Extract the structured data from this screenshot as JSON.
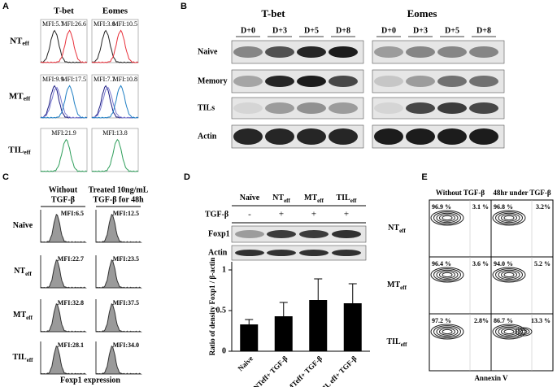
{
  "panels": {
    "a": {
      "letter": "A",
      "columns": [
        "T-bet",
        "Eomes"
      ],
      "rows": [
        {
          "text": "NT",
          "sub": "eff"
        },
        {
          "text": "MT",
          "sub": "eff"
        },
        {
          "text": "TIL",
          "sub": "eff"
        }
      ],
      "mfi": [
        [
          [
            "MFI:5.7",
            "MFI:26.6"
          ],
          [
            "MFI:3.6",
            "MFI:10.5"
          ]
        ],
        [
          [
            "MFI:9.9",
            "MFI:17.5"
          ],
          [
            "MFI:7.7",
            "MFI:10.8"
          ]
        ],
        [
          [
            "MFI:21.9"
          ],
          [
            "MFI:13.8"
          ]
        ]
      ],
      "line_colors": [
        [
          "#222222",
          "#e8303a"
        ],
        [
          "#1a1a80",
          "#1f7fc4"
        ],
        [
          "#2e9e5a"
        ]
      ]
    },
    "b": {
      "letter": "B",
      "groups": [
        "T-bet",
        "Eomes"
      ],
      "days": [
        "D+0",
        "D+3",
        "D+5",
        "D+8"
      ],
      "rows": [
        "Naive",
        "Memory",
        "TILs",
        "Actin"
      ]
    },
    "c": {
      "letter": "C",
      "columns": [
        [
          "Without",
          "TGF-β"
        ],
        [
          "Treated 10ng/mL",
          "TGF-β for 48h"
        ]
      ],
      "rows": [
        {
          "text": "Naïve"
        },
        {
          "text": "NT",
          "sub": "eff"
        },
        {
          "text": "MT",
          "sub": "eff"
        },
        {
          "text": "TIL",
          "sub": "eff"
        }
      ],
      "mfi": [
        [
          "MFI:6.5",
          "MFI:12.5"
        ],
        [
          "MFI:22.7",
          "MFI:23.5"
        ],
        [
          "MFI:32.8",
          "MFI:37.5"
        ],
        [
          "MFI:28.1",
          "MFI:34.0"
        ]
      ],
      "xlabel": "Foxp1 expression"
    },
    "d": {
      "letter": "D",
      "lanes": [
        {
          "text": "Naïve"
        },
        {
          "text": "NT",
          "sub": "eff"
        },
        {
          "text": "MT",
          "sub": "eff"
        },
        {
          "text": "TIL",
          "sub": "eff"
        }
      ],
      "treatment_label": "TGF-β",
      "treatment": [
        "-",
        "+",
        "+",
        "+"
      ],
      "blots": [
        "Foxp1",
        "Actin"
      ]
    },
    "e": {
      "letter": "E",
      "columns": [
        "Without TGF-β",
        "48hr under TGF-β"
      ],
      "rows": [
        {
          "text": "NT",
          "sub": "eff"
        },
        {
          "text": "MT",
          "sub": "eff"
        },
        {
          "text": "TIL",
          "sub": "eff"
        }
      ],
      "quadrants": [
        [
          [
            "96.9 %",
            "3.1 %"
          ],
          [
            "96.8 %",
            "3.2%"
          ]
        ],
        [
          [
            "96.4 %",
            "3.6 %"
          ],
          [
            "94.0 %",
            "5.2 %"
          ]
        ],
        [
          [
            "97.2 %",
            "2.8%"
          ],
          [
            "86.7 %",
            "13.3 %"
          ]
        ]
      ],
      "xlabel": "Annexin V"
    }
  },
  "chart_data": {
    "type": "bar",
    "ylabel": "Ratio of density Foxp1 / β-actin",
    "categories": [
      "Naive",
      "NTeff+ TGF-β",
      "MTeff+ TGF-β",
      "TIL eff+ TGF-β"
    ],
    "values": [
      0.33,
      0.43,
      0.63,
      0.59
    ],
    "errors": [
      0.06,
      0.17,
      0.26,
      0.24
    ],
    "color": "#000000",
    "ylim": [
      0,
      1.1
    ],
    "yticks": [
      0,
      0.5,
      1
    ]
  }
}
